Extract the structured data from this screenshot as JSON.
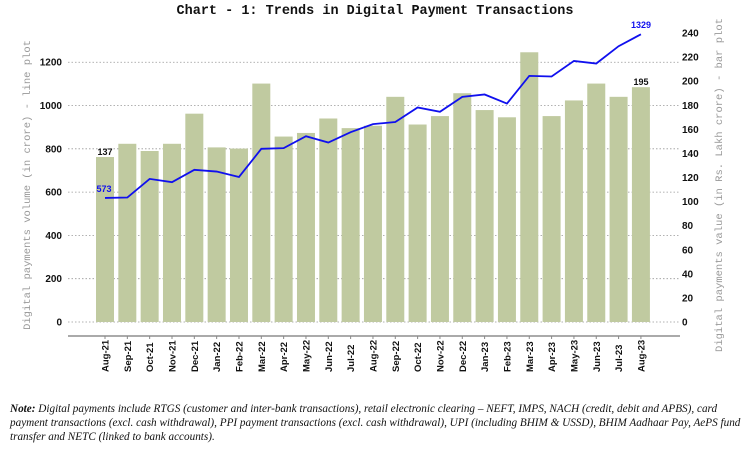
{
  "chart_data": {
    "type": "bar+line",
    "title": "Chart - 1: Trends in Digital Payment Transactions",
    "ylabel_left": "Digital payments volume (in crore) - line plot",
    "ylabel_right": "Digital payments value (in Rs. Lakh crore) - bar plot",
    "categories": [
      "Aug-21",
      "Sep-21",
      "Oct-21",
      "Nov-21",
      "Dec-21",
      "Jan-22",
      "Feb-22",
      "Mar-22",
      "Apr-22",
      "May-22",
      "Jun-22",
      "Jul-22",
      "Aug-22",
      "Sep-22",
      "Oct-22",
      "Nov-22",
      "Dec-22",
      "Jan-23",
      "Feb-23",
      "Mar-23",
      "Apr-23",
      "May-23",
      "Jun-23",
      "Jul-23",
      "Aug-23"
    ],
    "bar_series": {
      "axis": "right",
      "color": "#c0caa0",
      "values": [
        137,
        148,
        142,
        148,
        173,
        145,
        144,
        198,
        154,
        157,
        169,
        161,
        163,
        187,
        164,
        171,
        190,
        176,
        170,
        224,
        171,
        184,
        198,
        187,
        195
      ]
    },
    "line_series": {
      "axis": "left",
      "color": "#1010ee",
      "values": [
        573,
        575,
        661,
        646,
        703,
        695,
        670,
        800,
        803,
        858,
        829,
        877,
        914,
        924,
        991,
        971,
        1040,
        1051,
        1009,
        1137,
        1134,
        1206,
        1194,
        1274,
        1329
      ]
    },
    "data_labels": {
      "bar_first": "137",
      "bar_last": "195",
      "line_first": "573",
      "line_last": "1329"
    },
    "left_axis": {
      "ylim": [
        0,
        1335
      ],
      "ticks": [
        "0",
        "200",
        "400",
        "600",
        "800",
        "1000",
        "1200"
      ]
    },
    "right_axis": {
      "ylim": [
        0,
        240
      ],
      "ticks": [
        "0",
        "20",
        "40",
        "60",
        "80",
        "100",
        "120",
        "140",
        "160",
        "180",
        "200",
        "220",
        "240"
      ]
    },
    "grid": "dotted horizontal at left-axis ticks",
    "legend": "none"
  },
  "note": {
    "label": "Note:",
    "text": " Digital payments include RTGS (customer and inter-bank transactions), retail electronic clearing – NEFT, IMPS, NACH (credit, debit and APBS), card payment transactions (excl. cash withdrawal), PPI payment transactions (excl. cash withdrawal), UPI (including BHIM & USSD), BHIM Aadhaar Pay, AePS fund transfer and NETC (linked to bank accounts)."
  }
}
